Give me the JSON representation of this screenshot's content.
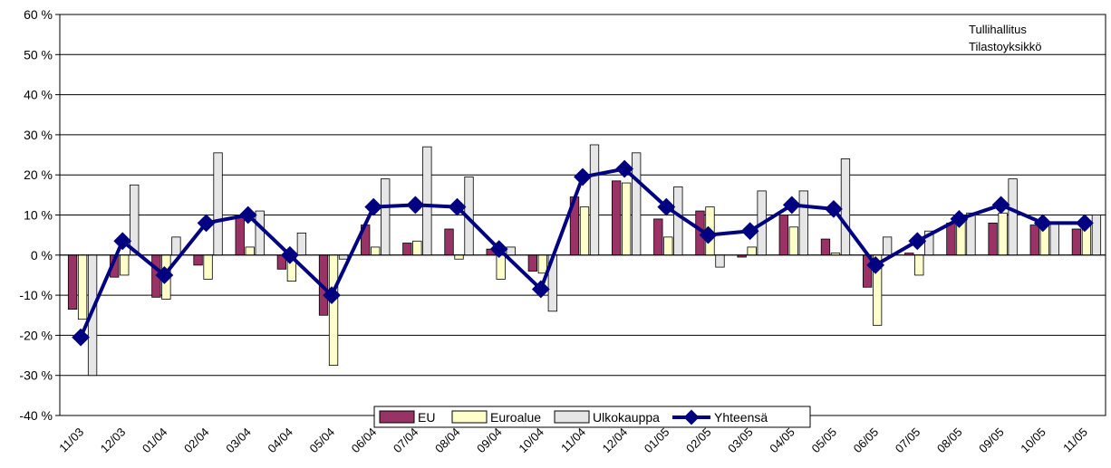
{
  "chart_data": {
    "type": "bar",
    "title": "",
    "xlabel": "",
    "ylabel": "",
    "ylim": [
      -40,
      60
    ],
    "y_tick_step": 10,
    "y_tick_suffix": " %",
    "grid": true,
    "legend_position": "bottom-center",
    "categories": [
      "11/03",
      "12/03",
      "01/04",
      "02/04",
      "03/04",
      "04/04",
      "05/04",
      "06/04",
      "07/04",
      "08/04",
      "09/04",
      "10/04",
      "11/04",
      "12/04",
      "01/05",
      "02/05",
      "03/05",
      "04/05",
      "05/05",
      "06/05",
      "07/05",
      "08/05",
      "09/05",
      "10/05",
      "11/05"
    ],
    "series": [
      {
        "name": "EU",
        "kind": "bar",
        "color": "#993366",
        "values": [
          -13.5,
          -5.5,
          -10.5,
          -2.5,
          10,
          -3.5,
          -15,
          7.5,
          3,
          6.5,
          1.5,
          -4,
          14.5,
          18.5,
          9,
          11,
          -0.5,
          10,
          4,
          -8,
          0.5,
          8,
          8,
          7.5,
          6.5
        ]
      },
      {
        "name": "Euroalue",
        "kind": "bar",
        "color": "#FFFFCC",
        "values": [
          -16,
          -5,
          -11,
          -6,
          2,
          -6.5,
          -27.5,
          2,
          3.5,
          -1,
          -6,
          -4.5,
          12,
          18,
          4.5,
          12,
          2,
          7,
          0.5,
          -17.5,
          -5,
          10,
          10.5,
          8,
          8
        ]
      },
      {
        "name": "Ulkokauppa",
        "kind": "bar",
        "color": "#E6E6E6",
        "values": [
          -30,
          17.5,
          4.5,
          25.5,
          11,
          5.5,
          -1,
          19,
          27,
          19.5,
          2,
          -14,
          27.5,
          25.5,
          17,
          -3,
          16,
          16,
          24,
          4.5,
          6,
          10.5,
          19,
          8,
          10
        ]
      },
      {
        "name": "Yhteensä",
        "kind": "line",
        "color": "#000080",
        "values": [
          -20.5,
          3.5,
          -5,
          8,
          10,
          0,
          -10,
          12,
          12.5,
          12,
          1.5,
          -8.5,
          19.5,
          21.5,
          12,
          5,
          6,
          12.5,
          11.5,
          -2.5,
          3.5,
          9,
          12.5,
          8,
          8
        ]
      }
    ],
    "annotation": [
      "Tullihallitus",
      "Tilastoyksikkö"
    ]
  }
}
